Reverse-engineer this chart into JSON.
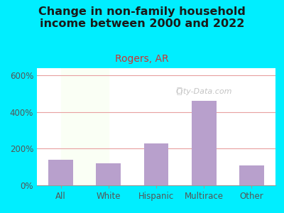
{
  "title": "Change in non-family household\nincome between 2000 and 2022",
  "subtitle": "Rogers, AR",
  "categories": [
    "All",
    "White",
    "Hispanic",
    "Multirace",
    "Other"
  ],
  "values": [
    140,
    120,
    230,
    460,
    110
  ],
  "bar_color": "#b8a0cc",
  "title_fontsize": 11.5,
  "subtitle_fontsize": 10,
  "subtitle_color": "#cc3333",
  "title_color": "#1a1a1a",
  "background_outer": "#00eeff",
  "grid_color": "#e8a0a0",
  "yticks": [
    0,
    200,
    400,
    600
  ],
  "ylim": [
    0,
    640
  ],
  "tick_color": "#555555",
  "watermark": "City-Data.com"
}
